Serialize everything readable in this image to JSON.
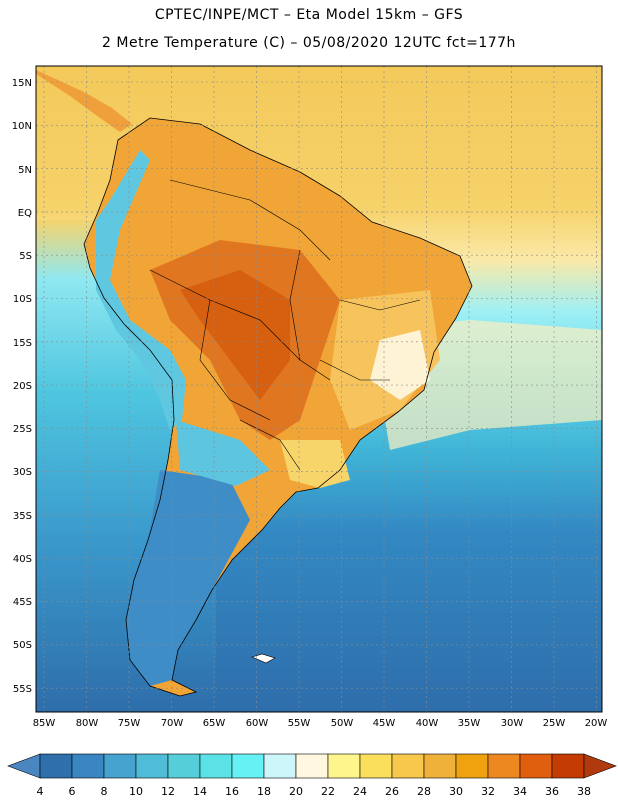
{
  "header": {
    "line1": "CPTEC/INPE/MCT –  Eta Model 15km – GFS",
    "line2": "2 Metre Temperature (C) – 05/08/2020 12UTC fct=177h"
  },
  "map": {
    "region": "South America",
    "lat_labels": [
      "15N",
      "10N",
      "5N",
      "EQ",
      "5S",
      "10S",
      "15S",
      "20S",
      "25S",
      "30S",
      "35S",
      "40S",
      "45S",
      "50S",
      "55S"
    ],
    "lon_labels": [
      "85W",
      "80W",
      "75W",
      "70W",
      "65W",
      "60W",
      "55W",
      "50W",
      "45W",
      "40W",
      "35W",
      "30W",
      "25W",
      "20W"
    ],
    "colors": {
      "ocean_warm": "#f6cf5a",
      "ocean_mid": "#7de7f3",
      "ocean_cool": "#47c2dd",
      "ocean_cold": "#2f74b2",
      "land_hot": "#e2741c",
      "land_warm": "#ee9a2c",
      "land_mild": "#f4b83c",
      "andes": "#55b6d8",
      "patagonia": "#3b83bf"
    }
  },
  "colorbar": {
    "labels": [
      "4",
      "6",
      "8",
      "10",
      "12",
      "14",
      "16",
      "18",
      "20",
      "22",
      "24",
      "26",
      "28",
      "30",
      "32",
      "34",
      "36",
      "38"
    ],
    "colors": [
      "#4a86bf",
      "#2f6fab",
      "#3a86c2",
      "#46a3cf",
      "#4fbcd8",
      "#55ceda",
      "#5be2e6",
      "#66f2f4",
      "#cdf6fb",
      "#fff7df",
      "#fef58c",
      "#fadf5c",
      "#f7c84b",
      "#efb13a",
      "#f0a20e",
      "#ed8820",
      "#df5f0e",
      "#c43c03",
      "#b03a0e"
    ]
  }
}
